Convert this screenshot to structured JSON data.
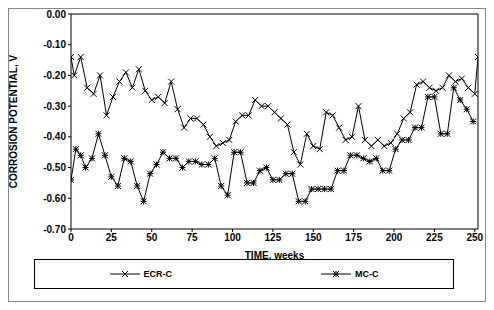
{
  "chart_data": {
    "type": "line",
    "x_label": "TIME, weeks",
    "y_label": "CORROSION POTENTIAL, V",
    "xlim": [
      0,
      252
    ],
    "xticks": [
      0,
      25,
      50,
      75,
      100,
      125,
      150,
      175,
      200,
      225,
      250
    ],
    "ylim": [
      -0.7,
      0
    ],
    "yticks": [
      {
        "value": 0,
        "label": "0.00"
      },
      {
        "value": -0.1,
        "label": "-0.10"
      },
      {
        "value": -0.2,
        "label": "-0.20"
      },
      {
        "value": -0.3,
        "label": "-0.30"
      },
      {
        "value": -0.4,
        "label": "-0.40"
      },
      {
        "value": -0.5,
        "label": "-0.50"
      },
      {
        "value": -0.6,
        "label": "-0.60"
      },
      {
        "value": -0.7,
        "label": "-0.70"
      }
    ],
    "grid": false,
    "legend": "bottom",
    "series": [
      {
        "name": "ECR-C",
        "color": "#000000",
        "marker": "x",
        "x": [
          0,
          2,
          6,
          10,
          14,
          18,
          22,
          26,
          30,
          34,
          38,
          42,
          46,
          50,
          54,
          58,
          62,
          66,
          70,
          74,
          78,
          82,
          86,
          90,
          94,
          98,
          102,
          106,
          110,
          114,
          118,
          122,
          126,
          130,
          134,
          138,
          142,
          146,
          150,
          154,
          158,
          162,
          166,
          170,
          174,
          178,
          182,
          186,
          190,
          194,
          198,
          202,
          206,
          210,
          214,
          218,
          222,
          226,
          230,
          234,
          238,
          242,
          246,
          250,
          252
        ],
        "values": [
          -0.14,
          -0.2,
          -0.14,
          -0.24,
          -0.26,
          -0.2,
          -0.33,
          -0.27,
          -0.22,
          -0.19,
          -0.24,
          -0.18,
          -0.25,
          -0.28,
          -0.27,
          -0.29,
          -0.22,
          -0.31,
          -0.37,
          -0.34,
          -0.34,
          -0.36,
          -0.4,
          -0.43,
          -0.42,
          -0.41,
          -0.35,
          -0.33,
          -0.33,
          -0.28,
          -0.3,
          -0.3,
          -0.32,
          -0.34,
          -0.36,
          -0.45,
          -0.49,
          -0.39,
          -0.43,
          -0.44,
          -0.32,
          -0.33,
          -0.37,
          -0.41,
          -0.4,
          -0.3,
          -0.41,
          -0.43,
          -0.41,
          -0.43,
          -0.42,
          -0.39,
          -0.34,
          -0.32,
          -0.23,
          -0.22,
          -0.24,
          -0.25,
          -0.24,
          -0.2,
          -0.22,
          -0.21,
          -0.24,
          -0.26,
          -0.14
        ]
      },
      {
        "name": "MC-C",
        "color": "#000000",
        "marker": "asterisk",
        "x": [
          0,
          3,
          6,
          9,
          13,
          17,
          21,
          25,
          29,
          33,
          37,
          41,
          45,
          49,
          53,
          57,
          61,
          65,
          69,
          73,
          77,
          81,
          85,
          89,
          93,
          97,
          101,
          105,
          109,
          113,
          117,
          121,
          125,
          129,
          133,
          137,
          141,
          145,
          149,
          153,
          157,
          161,
          165,
          169,
          173,
          177,
          181,
          185,
          189,
          193,
          197,
          201,
          205,
          209,
          213,
          217,
          221,
          225,
          229,
          233,
          237,
          241,
          245,
          249
        ],
        "values": [
          -0.54,
          -0.44,
          -0.46,
          -0.5,
          -0.47,
          -0.39,
          -0.46,
          -0.53,
          -0.56,
          -0.47,
          -0.48,
          -0.56,
          -0.61,
          -0.52,
          -0.49,
          -0.45,
          -0.47,
          -0.47,
          -0.5,
          -0.48,
          -0.48,
          -0.49,
          -0.49,
          -0.47,
          -0.56,
          -0.59,
          -0.45,
          -0.45,
          -0.55,
          -0.55,
          -0.51,
          -0.5,
          -0.54,
          -0.54,
          -0.52,
          -0.52,
          -0.61,
          -0.61,
          -0.57,
          -0.57,
          -0.57,
          -0.57,
          -0.51,
          -0.51,
          -0.46,
          -0.46,
          -0.47,
          -0.48,
          -0.47,
          -0.51,
          -0.51,
          -0.44,
          -0.41,
          -0.41,
          -0.37,
          -0.37,
          -0.27,
          -0.27,
          -0.39,
          -0.39,
          -0.24,
          -0.28,
          -0.31,
          -0.35
        ]
      }
    ]
  }
}
